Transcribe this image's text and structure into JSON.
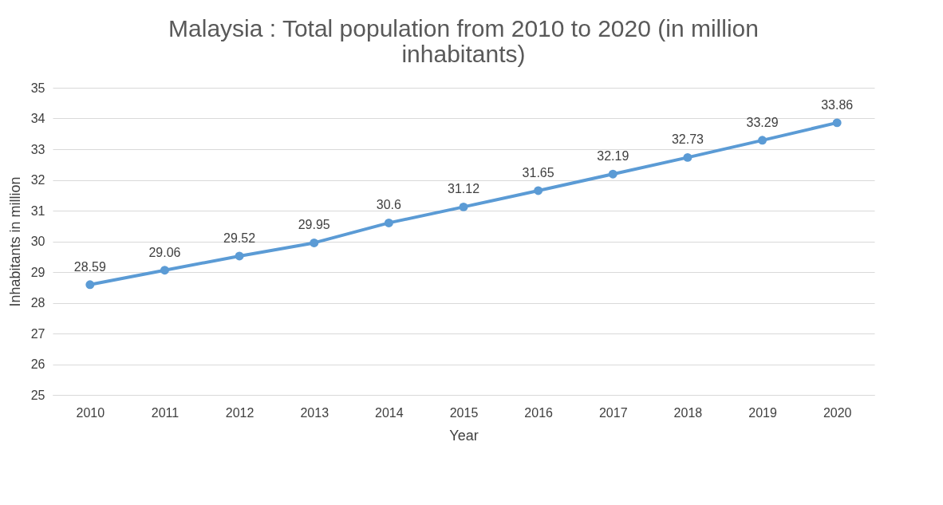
{
  "chart_data": {
    "type": "line",
    "title": "Malaysia : Total population from 2010 to 2020 (in million inhabitants)",
    "xlabel": "Year",
    "ylabel": "Inhabitants in million",
    "categories": [
      "2010",
      "2011",
      "2012",
      "2013",
      "2014",
      "2015",
      "2016",
      "2017",
      "2018",
      "2019",
      "2020"
    ],
    "series": [
      {
        "color": "#5b9bd5",
        "values": [
          28.59,
          29.06,
          29.52,
          29.95,
          30.6,
          31.12,
          31.65,
          32.19,
          32.73,
          33.29,
          33.86
        ]
      }
    ],
    "ylim": [
      25,
      35
    ],
    "yticks": [
      25,
      26,
      27,
      28,
      29,
      30,
      31,
      32,
      33,
      34,
      35
    ],
    "grid": "y",
    "marker": "circle",
    "line_style": "solid",
    "data_labels": true,
    "legend": false
  }
}
